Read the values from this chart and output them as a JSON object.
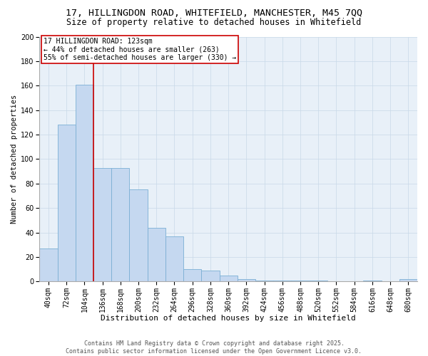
{
  "title_line1": "17, HILLINGDON ROAD, WHITEFIELD, MANCHESTER, M45 7QQ",
  "title_line2": "Size of property relative to detached houses in Whitefield",
  "xlabel": "Distribution of detached houses by size in Whitefield",
  "ylabel": "Number of detached properties",
  "categories": [
    "40sqm",
    "72sqm",
    "104sqm",
    "136sqm",
    "168sqm",
    "200sqm",
    "232sqm",
    "264sqm",
    "296sqm",
    "328sqm",
    "360sqm",
    "392sqm",
    "424sqm",
    "456sqm",
    "488sqm",
    "520sqm",
    "552sqm",
    "584sqm",
    "616sqm",
    "648sqm",
    "680sqm"
  ],
  "values": [
    27,
    128,
    161,
    93,
    93,
    75,
    44,
    37,
    10,
    9,
    5,
    2,
    1,
    1,
    1,
    1,
    0,
    0,
    1,
    0,
    2
  ],
  "bar_color": "#c5d8f0",
  "bar_edge_color": "#7bafd4",
  "vline_color": "#cc0000",
  "annotation_text": "17 HILLINGDON ROAD: 123sqm\n← 44% of detached houses are smaller (263)\n55% of semi-detached houses are larger (330) →",
  "annotation_box_color": "#cc0000",
  "ylim": [
    0,
    200
  ],
  "yticks": [
    0,
    20,
    40,
    60,
    80,
    100,
    120,
    140,
    160,
    180,
    200
  ],
  "grid_color": "#c8d8e8",
  "bg_color": "#e8f0f8",
  "footer_text": "Contains HM Land Registry data © Crown copyright and database right 2025.\nContains public sector information licensed under the Open Government Licence v3.0.",
  "title_fontsize": 9.5,
  "subtitle_fontsize": 8.5,
  "xlabel_fontsize": 8,
  "ylabel_fontsize": 7.5,
  "tick_fontsize": 7,
  "footer_fontsize": 6
}
